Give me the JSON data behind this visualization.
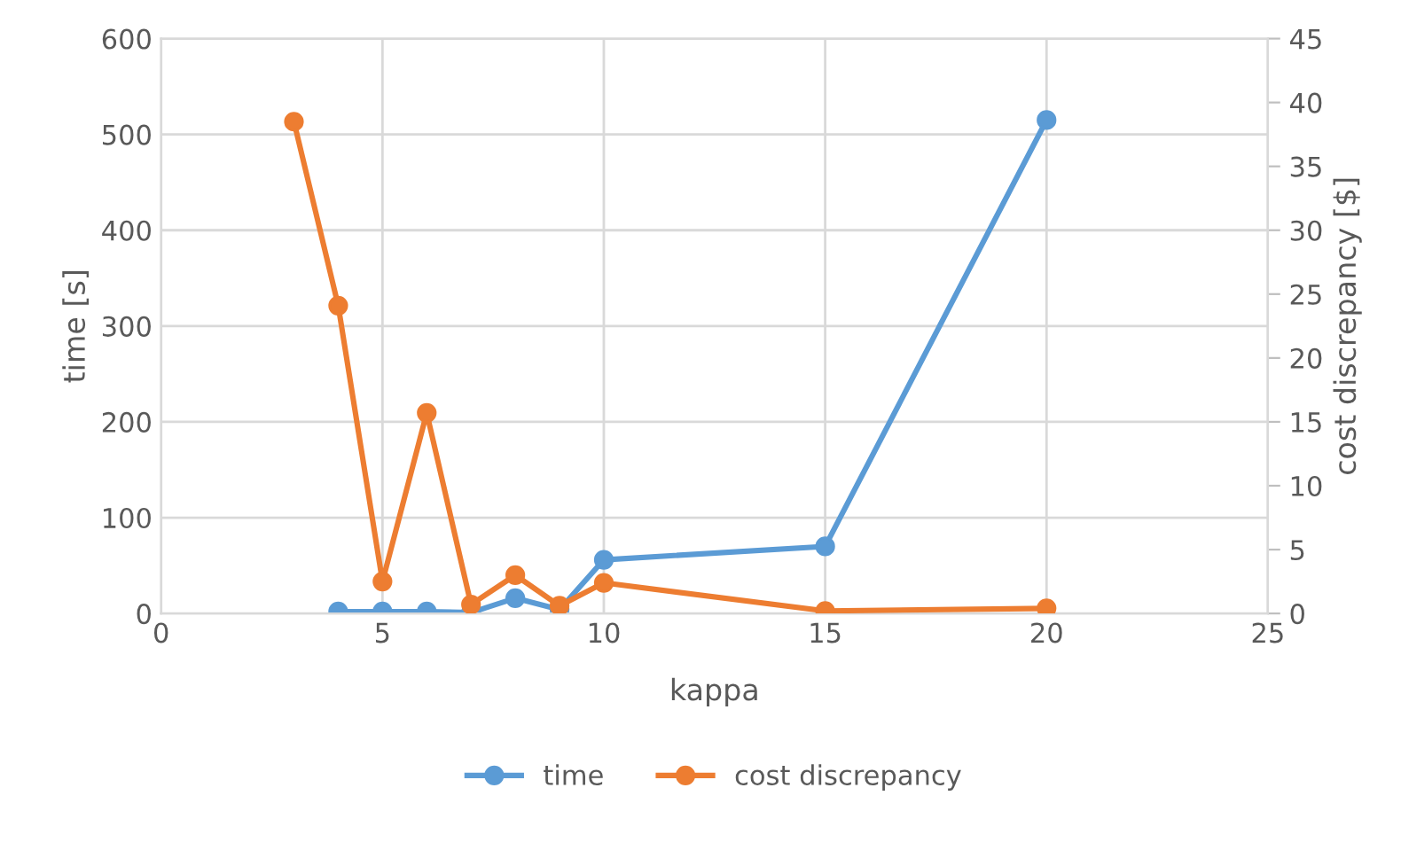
{
  "chart_data": {
    "type": "line",
    "xlabel": "kappa",
    "ylabel": "time [s]",
    "y2label": "cost discrepancy [$]",
    "xlim": [
      0,
      25
    ],
    "xticks": [
      0,
      5,
      10,
      15,
      20,
      25
    ],
    "ylim": [
      0,
      600
    ],
    "yticks": [
      0,
      100,
      200,
      300,
      400,
      500,
      600
    ],
    "y2lim": [
      0,
      45
    ],
    "y2ticks": [
      0,
      5,
      10,
      15,
      20,
      25,
      30,
      35,
      40,
      45
    ],
    "grid": true,
    "legend": "bottom",
    "marker": "circle",
    "line_style": "solid",
    "series": [
      {
        "name": "time",
        "color": "#5b9bd5",
        "x": [
          4,
          5,
          6,
          7,
          8,
          9,
          10,
          15,
          20
        ],
        "values": [
          2,
          2,
          2,
          1,
          16,
          4,
          56,
          70,
          515
        ]
      },
      {
        "name": "cost discrepancy",
        "color": "#ed7d31",
        "axis": "y2",
        "x": [
          3,
          4,
          5,
          6,
          7,
          8,
          9,
          10,
          15,
          20
        ],
        "values": [
          38.5,
          24.1,
          2.5,
          15.7,
          0.7,
          3.0,
          0.6,
          2.4,
          0.2,
          0.4
        ]
      }
    ]
  }
}
